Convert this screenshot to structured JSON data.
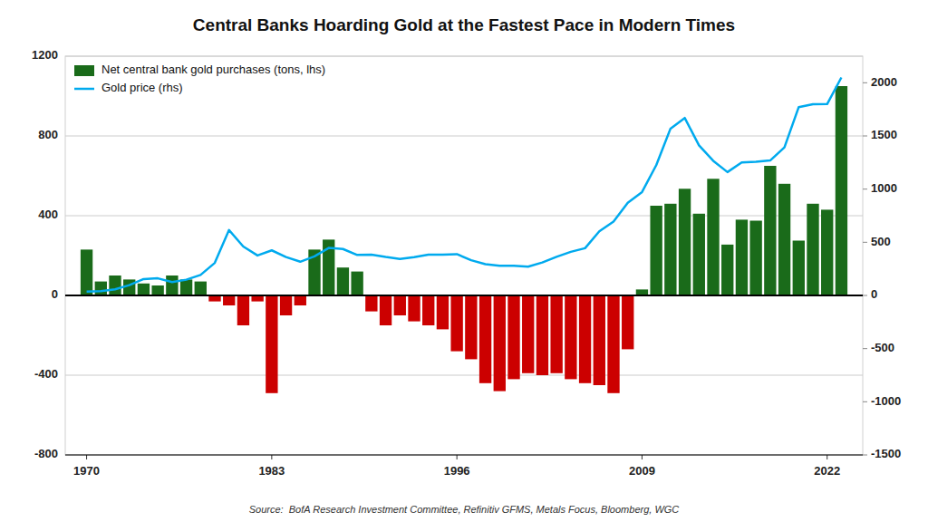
{
  "chart_data": {
    "type": "bar",
    "title": "Central Banks Hoarding Gold at the Fastest Pace in Modern Times",
    "annotations": [
      "Source:  BofA Research Investment Committee, Refinitiv GFMS, Metals Focus, Bloomberg, WGC"
    ],
    "x": [
      1970,
      1971,
      1972,
      1973,
      1974,
      1975,
      1976,
      1977,
      1978,
      1979,
      1980,
      1981,
      1982,
      1983,
      1984,
      1985,
      1986,
      1987,
      1988,
      1989,
      1990,
      1991,
      1992,
      1993,
      1994,
      1995,
      1996,
      1997,
      1998,
      1999,
      2000,
      2001,
      2002,
      2003,
      2004,
      2005,
      2006,
      2007,
      2008,
      2009,
      2010,
      2011,
      2012,
      2013,
      2014,
      2015,
      2016,
      2017,
      2018,
      2019,
      2020,
      2021,
      2022,
      2023
    ],
    "xlim": [
      1968.5,
      2024.5
    ],
    "xticks": [
      1970,
      1983,
      1996,
      2009,
      2022
    ],
    "ylim": [
      -800,
      1200
    ],
    "yticks": [
      -800,
      -400,
      0,
      400,
      800,
      1200
    ],
    "y2lim": [
      -1500,
      2250
    ],
    "y2ticks": [
      -1500,
      -1000,
      -500,
      0,
      500,
      1000,
      1500,
      2000
    ],
    "grid": true,
    "legend": "upper left",
    "series": [
      {
        "name": "Net central bank gold purchases (tons, lhs)",
        "type": "bar",
        "color": "#1a6b1a",
        "values": [
          230,
          70,
          100,
          80,
          60,
          50,
          100,
          80,
          70,
          -30,
          -50,
          -150,
          -30,
          -490,
          -100,
          -50,
          230,
          280,
          140,
          120,
          -80,
          -150,
          -100,
          -130,
          -150,
          -170,
          -280,
          -320,
          -440,
          -480,
          -420,
          -390,
          -400,
          -390,
          -420,
          -440,
          -450,
          -490,
          -270,
          30,
          450,
          460,
          535,
          410,
          585,
          255,
          380,
          375,
          650,
          560,
          275,
          460,
          430,
          1050
        ],
        "colors": [
          "#1a6b1a",
          "#1a6b1a",
          "#1a6b1a",
          "#1a6b1a",
          "#1a6b1a",
          "#1a6b1a",
          "#1a6b1a",
          "#1a6b1a",
          "#1a6b1a",
          "#cc0000",
          "#cc0000",
          "#cc0000",
          "#cc0000",
          "#cc0000",
          "#cc0000",
          "#cc0000",
          "#1a6b1a",
          "#1a6b1a",
          "#1a6b1a",
          "#1a6b1a",
          "#cc0000",
          "#cc0000",
          "#cc0000",
          "#cc0000",
          "#cc0000",
          "#cc0000",
          "#cc0000",
          "#cc0000",
          "#cc0000",
          "#cc0000",
          "#cc0000",
          "#cc0000",
          "#cc0000",
          "#cc0000",
          "#cc0000",
          "#cc0000",
          "#cc0000",
          "#cc0000",
          "#cc0000",
          "#1a6b1a",
          "#1a6b1a",
          "#1a6b1a",
          "#1a6b1a",
          "#1a6b1a",
          "#1a6b1a",
          "#1a6b1a",
          "#1a6b1a",
          "#1a6b1a",
          "#1a6b1a",
          "#1a6b1a",
          "#1a6b1a",
          "#1a6b1a",
          "#1a6b1a",
          "#1a6b1a"
        ]
      },
      {
        "name": "Gold price (rhs)",
        "type": "line",
        "axis": "y2",
        "color": "#00aaee",
        "values": [
          37,
          41,
          58,
          97,
          154,
          161,
          125,
          148,
          193,
          306,
          615,
          460,
          376,
          424,
          361,
          317,
          368,
          447,
          437,
          381,
          383,
          362,
          344,
          360,
          384,
          384,
          388,
          331,
          294,
          279,
          279,
          271,
          310,
          363,
          410,
          444,
          603,
          695,
          872,
          972,
          1225,
          1569,
          1669,
          1411,
          1266,
          1160,
          1251,
          1257,
          1269,
          1393,
          1770,
          1799,
          1800,
          2050
        ]
      }
    ]
  }
}
